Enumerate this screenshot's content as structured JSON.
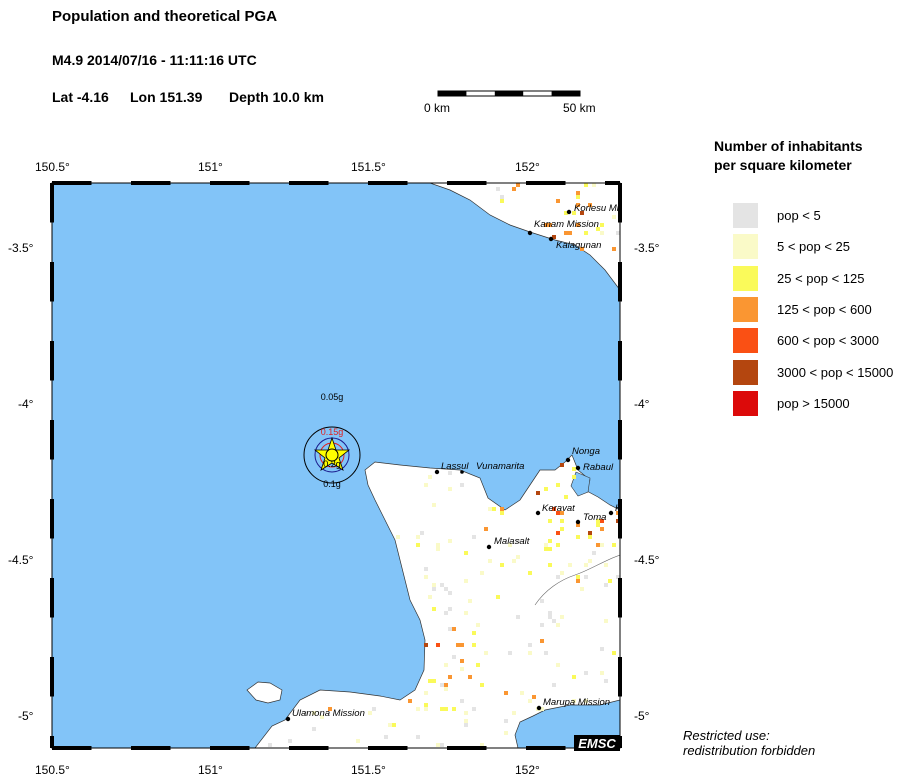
{
  "header": {
    "title": "Population and theoretical PGA",
    "event": "M4.9  2014/07/16 - 11:11:16 UTC",
    "lat": "Lat -4.16",
    "lon": "Lon 151.39",
    "depth": "Depth  10.0 km"
  },
  "scale_bar": {
    "start": "0 km",
    "end": "50 km"
  },
  "axes": {
    "lon_ticks": [
      "150.5°",
      "151°",
      "151.5°",
      "152°"
    ],
    "lat_ticks": [
      "-3.5°",
      "-4°",
      "-4.5°",
      "-5°"
    ]
  },
  "pga_labels": [
    "0.05g",
    "0.15g",
    "0.2g",
    "0.1g"
  ],
  "towns": [
    "Korlesu Mi",
    "Kanam Mission",
    "Kalagunan",
    "Lassul",
    "Vunamarita",
    "Nonga",
    "Rabaul",
    "Keravat",
    "Toma",
    "K",
    "Malasalt",
    "Ulamona Mission",
    "Marupa Mission"
  ],
  "legend": {
    "title_line1": "Number of inhabitants",
    "title_line2": "per square kilometer",
    "items": [
      {
        "label": "pop < 5",
        "color": "#e4e4e4"
      },
      {
        "label": "5 < pop < 25",
        "color": "#fafac8"
      },
      {
        "label": "25 < pop < 125",
        "color": "#fafa5a"
      },
      {
        "label": "125 < pop < 600",
        "color": "#fa9632"
      },
      {
        "label": "600 < pop < 3000",
        "color": "#fa5014"
      },
      {
        "label": "3000 < pop < 15000",
        "color": "#b4460f"
      },
      {
        "label": "pop > 15000",
        "color": "#dc0a0a"
      }
    ]
  },
  "colors": {
    "sea": "#82c4f8",
    "land": "#ffffff",
    "epicenter": "#ffff00"
  },
  "logo": "EMSC",
  "notice_line1": "Restricted use:",
  "notice_line2": "redistribution forbidden"
}
